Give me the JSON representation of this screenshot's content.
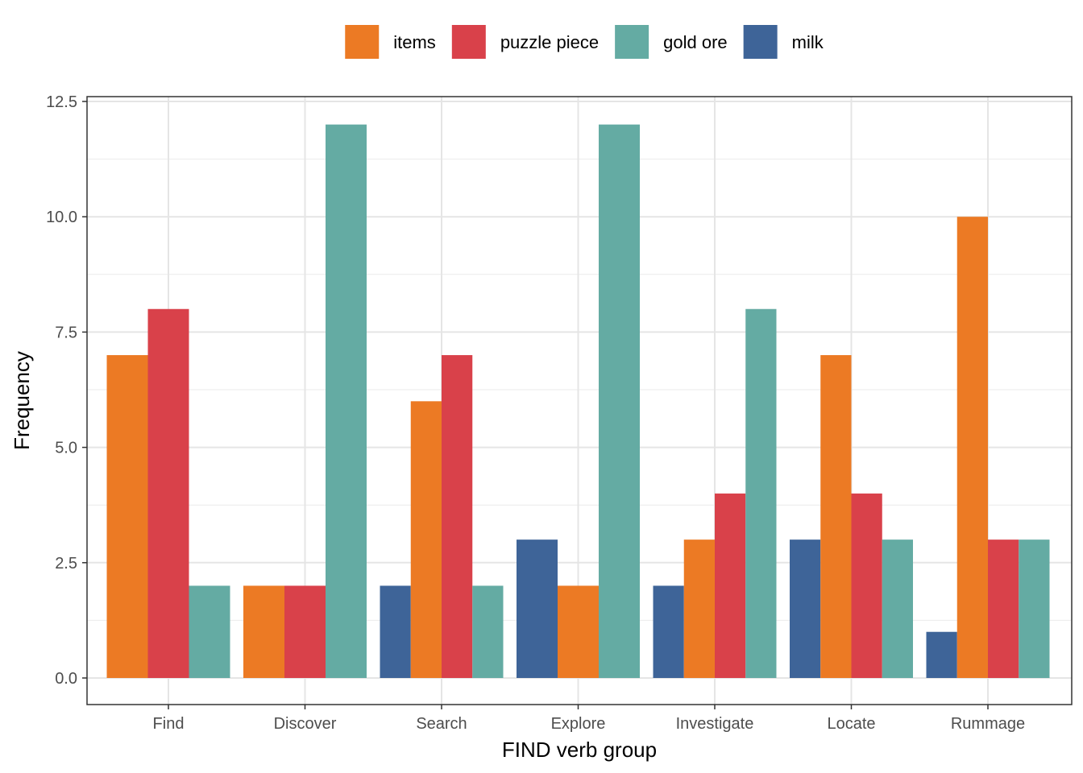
{
  "chart_data": {
    "type": "bar",
    "xlabel": "FIND verb group",
    "ylabel": "Frequency",
    "categories": [
      "Find",
      "Discover",
      "Search",
      "Explore",
      "Investigate",
      "Locate",
      "Rummage"
    ],
    "ylim": [
      0,
      12.5
    ],
    "yticks": [
      0,
      2.5,
      5,
      7.5,
      10,
      12.5
    ],
    "ytick_labels": [
      "0.0",
      "2.5",
      "5.0",
      "7.5",
      "10.0",
      "12.5"
    ],
    "grid": true,
    "legend_position": "top",
    "series_order_in_group": [
      "milk",
      "items",
      "puzzle piece",
      "gold ore"
    ],
    "legend_order": [
      "items",
      "puzzle piece",
      "gold ore",
      "milk"
    ],
    "series": [
      {
        "name": "items",
        "color": "#EC7A24",
        "values": [
          7,
          2,
          6,
          2,
          3,
          7,
          10
        ]
      },
      {
        "name": "puzzle piece",
        "color": "#D9414A",
        "values": [
          8,
          2,
          7,
          null,
          4,
          4,
          3
        ]
      },
      {
        "name": "gold ore",
        "color": "#64ABA3",
        "values": [
          2,
          12,
          2,
          12,
          8,
          3,
          3
        ]
      },
      {
        "name": "milk",
        "color": "#3E6498",
        "values": [
          null,
          null,
          2,
          3,
          2,
          3,
          1
        ]
      }
    ]
  }
}
